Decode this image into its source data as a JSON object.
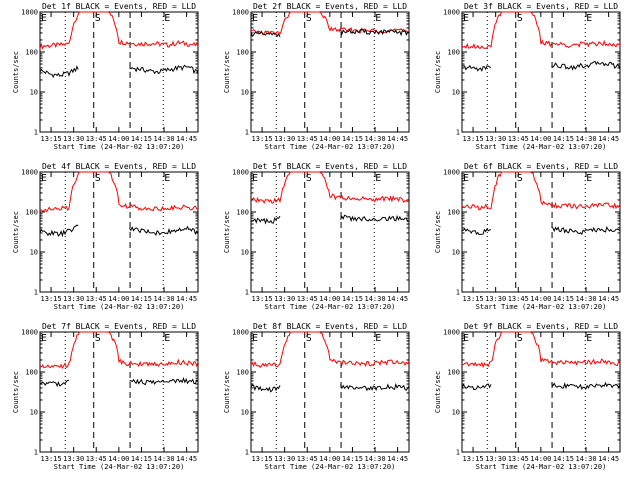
{
  "colors": {
    "events": "#000000",
    "lld": "#ff0000",
    "axes": "#000000"
  },
  "chart_data": [
    {
      "type": "line",
      "title": "Det 1f BLACK = Events, RED = LLD",
      "xlabel": "Start Time (24-Mar-02 13:07:20)",
      "ylabel": "Counts/sec",
      "yscale": "log",
      "ylim": [
        1,
        1000
      ],
      "y_ticks": [
        "1",
        "10",
        "100",
        "1000"
      ],
      "x_tick_labels": [
        "13:15",
        "13:30",
        "13:45",
        "14:00",
        "14:15",
        "14:30",
        "14:45"
      ],
      "markers": [
        "E",
        "S",
        "E"
      ],
      "series": [
        {
          "color": "red",
          "values": [
            140,
            145,
            150,
            160,
            1000,
            1000,
            1000,
            1000,
            180,
            170,
            160,
            165,
            160,
            150,
            170,
            160,
            145
          ]
        },
        {
          "color": "black",
          "values": [
            35,
            28,
            26,
            30,
            42,
            null,
            null,
            null,
            null,
            40,
            38,
            34,
            32,
            36,
            40,
            42,
            30
          ]
        }
      ]
    },
    {
      "type": "line",
      "title": "Det 2f BLACK = Events, RED = LLD",
      "xlabel": "Start Time (24-Mar-02 13:07:20)",
      "ylabel": "Counts/sec",
      "yscale": "log",
      "ylim": [
        1,
        1000
      ],
      "y_ticks": [
        "1",
        "10",
        "100",
        "1000"
      ],
      "x_tick_labels": [
        "13:15",
        "13:30",
        "13:45",
        "14:00",
        "14:15",
        "14:30",
        "14:45"
      ],
      "markers": [
        "E",
        "S",
        "E"
      ],
      "series": [
        {
          "color": "red",
          "values": [
            320,
            310,
            300,
            300,
            1000,
            1000,
            1000,
            1000,
            370,
            360,
            350,
            345,
            340,
            350,
            345,
            340,
            330
          ]
        },
        {
          "color": "black",
          "values": [
            290,
            280,
            270,
            275,
            null,
            null,
            null,
            null,
            null,
            330,
            325,
            320,
            315,
            320,
            315,
            310,
            300
          ]
        }
      ]
    },
    {
      "type": "line",
      "title": "Det 3f BLACK = Events, RED = LLD",
      "xlabel": "Start Time (24-Mar-02 13:07:20)",
      "ylabel": "Counts/sec",
      "yscale": "log",
      "ylim": [
        1,
        1000
      ],
      "y_ticks": [
        "1",
        "10",
        "100",
        "1000"
      ],
      "x_tick_labels": [
        "13:15",
        "13:30",
        "13:45",
        "14:00",
        "14:15",
        "14:30",
        "14:45"
      ],
      "markers": [
        "E",
        "S",
        "E"
      ],
      "series": [
        {
          "color": "red",
          "values": [
            150,
            140,
            135,
            145,
            1000,
            1000,
            1000,
            1000,
            170,
            160,
            155,
            150,
            155,
            160,
            170,
            165,
            150
          ]
        },
        {
          "color": "black",
          "values": [
            42,
            40,
            38,
            45,
            null,
            null,
            null,
            null,
            null,
            48,
            45,
            42,
            45,
            48,
            55,
            50,
            42
          ]
        }
      ]
    },
    {
      "type": "line",
      "title": "Det 4f BLACK = Events, RED = LLD",
      "xlabel": "Start Time (24-Mar-02 13:07:20)",
      "ylabel": "Counts/sec",
      "yscale": "log",
      "ylim": [
        1,
        1000
      ],
      "y_ticks": [
        "1",
        "10",
        "100",
        "1000"
      ],
      "x_tick_labels": [
        "13:15",
        "13:30",
        "13:45",
        "14:00",
        "14:15",
        "14:30",
        "14:45"
      ],
      "markers": [
        "E",
        "S",
        "E"
      ],
      "series": [
        {
          "color": "red",
          "values": [
            120,
            115,
            120,
            130,
            1000,
            1000,
            1000,
            1000,
            160,
            140,
            130,
            125,
            120,
            125,
            130,
            135,
            120
          ]
        },
        {
          "color": "black",
          "values": [
            32,
            30,
            28,
            34,
            45,
            null,
            null,
            null,
            null,
            40,
            36,
            32,
            30,
            32,
            35,
            38,
            30
          ]
        }
      ]
    },
    {
      "type": "line",
      "title": "Det 5f BLACK = Events, RED = LLD",
      "xlabel": "Start Time (24-Mar-02 13:07:20)",
      "ylabel": "Counts/sec",
      "yscale": "log",
      "ylim": [
        1,
        1000
      ],
      "y_ticks": [
        "1",
        "10",
        "100",
        "1000"
      ],
      "x_tick_labels": [
        "13:15",
        "13:30",
        "13:45",
        "14:00",
        "14:15",
        "14:30",
        "14:45"
      ],
      "markers": [
        "E",
        "S",
        "E"
      ],
      "series": [
        {
          "color": "red",
          "values": [
            200,
            190,
            185,
            200,
            1000,
            1000,
            1000,
            1000,
            250,
            230,
            220,
            215,
            210,
            215,
            220,
            210,
            190
          ]
        },
        {
          "color": "black",
          "values": [
            65,
            60,
            58,
            70,
            null,
            null,
            null,
            null,
            null,
            75,
            70,
            68,
            66,
            68,
            70,
            68,
            60
          ]
        }
      ]
    },
    {
      "type": "line",
      "title": "Det 6f BLACK = Events, RED = LLD",
      "xlabel": "Start Time (24-Mar-02 13:07:20)",
      "ylabel": "Counts/sec",
      "yscale": "log",
      "ylim": [
        1,
        1000
      ],
      "y_ticks": [
        "1",
        "10",
        "100",
        "1000"
      ],
      "x_tick_labels": [
        "13:15",
        "13:30",
        "13:45",
        "14:00",
        "14:15",
        "14:30",
        "14:45"
      ],
      "markers": [
        "E",
        "S",
        "E"
      ],
      "series": [
        {
          "color": "red",
          "values": [
            140,
            135,
            130,
            140,
            1000,
            1000,
            1000,
            1000,
            170,
            150,
            145,
            140,
            135,
            140,
            150,
            145,
            140
          ]
        },
        {
          "color": "black",
          "values": [
            35,
            32,
            30,
            38,
            null,
            null,
            null,
            null,
            null,
            40,
            36,
            33,
            32,
            34,
            38,
            36,
            33
          ]
        }
      ]
    },
    {
      "type": "line",
      "title": "Det 7f BLACK = Events, RED = LLD",
      "xlabel": "Start Time (24-Mar-02 13:07:20)",
      "ylabel": "Counts/sec",
      "yscale": "log",
      "ylim": [
        1,
        1000
      ],
      "y_ticks": [
        "1",
        "10",
        "100",
        "1000"
      ],
      "x_tick_labels": [
        "13:15",
        "13:30",
        "13:45",
        "14:00",
        "14:15",
        "14:30",
        "14:45"
      ],
      "markers": [
        "E",
        "S",
        "E"
      ],
      "series": [
        {
          "color": "red",
          "values": [
            150,
            145,
            140,
            155,
            1000,
            1000,
            1000,
            1000,
            180,
            165,
            160,
            155,
            160,
            165,
            175,
            170,
            160
          ]
        },
        {
          "color": "black",
          "values": [
            55,
            52,
            50,
            58,
            null,
            null,
            null,
            null,
            null,
            62,
            58,
            55,
            56,
            58,
            62,
            60,
            55
          ]
        }
      ]
    },
    {
      "type": "line",
      "title": "Det 8f BLACK = Events, RED = LLD",
      "xlabel": "Start Time (24-Mar-02 13:07:20)",
      "ylabel": "Counts/sec",
      "yscale": "log",
      "ylim": [
        1,
        1000
      ],
      "y_ticks": [
        "1",
        "10",
        "100",
        "1000"
      ],
      "x_tick_labels": [
        "13:15",
        "13:30",
        "13:45",
        "14:00",
        "14:15",
        "14:30",
        "14:45"
      ],
      "markers": [
        "E",
        "S",
        "E"
      ],
      "series": [
        {
          "color": "red",
          "values": [
            160,
            150,
            145,
            160,
            1000,
            1000,
            1000,
            1000,
            190,
            175,
            165,
            160,
            165,
            170,
            180,
            170,
            165
          ]
        },
        {
          "color": "black",
          "values": [
            42,
            38,
            35,
            44,
            null,
            null,
            null,
            null,
            null,
            46,
            42,
            40,
            38,
            40,
            44,
            42,
            40
          ]
        }
      ]
    },
    {
      "type": "line",
      "title": "Det 9f BLACK = Events, RED = LLD",
      "xlabel": "Start Time (24-Mar-02 13:07:20)",
      "ylabel": "Counts/sec",
      "yscale": "log",
      "ylim": [
        1,
        1000
      ],
      "y_ticks": [
        "1",
        "10",
        "100",
        "1000"
      ],
      "x_tick_labels": [
        "13:15",
        "13:30",
        "13:45",
        "14:00",
        "14:15",
        "14:30",
        "14:45"
      ],
      "markers": [
        "E",
        "S",
        "E"
      ],
      "series": [
        {
          "color": "red",
          "values": [
            165,
            160,
            155,
            165,
            1000,
            1000,
            1000,
            1000,
            200,
            180,
            170,
            165,
            168,
            175,
            185,
            175,
            165
          ]
        },
        {
          "color": "black",
          "values": [
            45,
            42,
            40,
            48,
            null,
            null,
            null,
            null,
            null,
            50,
            46,
            43,
            42,
            44,
            48,
            46,
            42
          ]
        }
      ]
    }
  ]
}
